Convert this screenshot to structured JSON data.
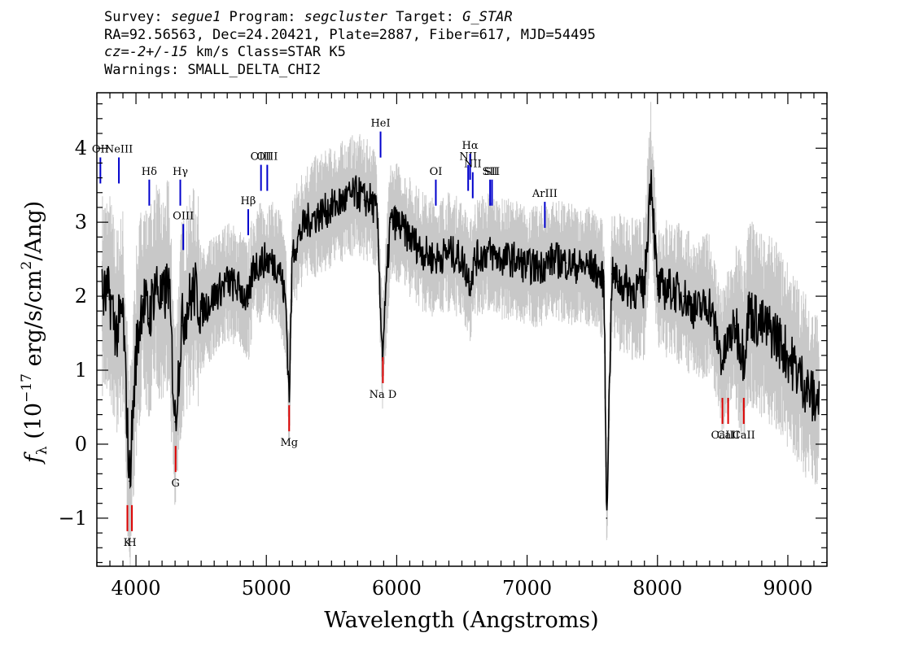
{
  "header": {
    "line1": {
      "survey_label": "Survey: ",
      "survey": "segue1",
      "program_label": " Program: ",
      "program": "segcluster",
      "target_label": " Target: ",
      "target": "G_STAR"
    },
    "line2": "RA=92.56563, Dec=24.20421, Plate=2887, Fiber=617, MJD=54495",
    "line3": {
      "cz": "cz=-2+/-15",
      "rest": " km/s Class=STAR K5"
    },
    "line4": "Warnings: SMALL_DELTA_CHI2"
  },
  "chart_data": {
    "type": "line",
    "xlabel": "Wavelength (Angstroms)",
    "ylabel": "f_λ (10^-17 erg/s/cm^2/Ang)",
    "xlim": [
      3700,
      9300
    ],
    "ylim": [
      -1.65,
      4.75
    ],
    "xticks": [
      4000,
      5000,
      6000,
      7000,
      8000,
      9000
    ],
    "yticks": [
      -1,
      0,
      1,
      2,
      3,
      4
    ],
    "colors": {
      "flux": "#000000",
      "error": "#c8c8c8",
      "emission": "#0000cc",
      "absorption": "#dd0000"
    },
    "series": [
      {
        "role": "flux",
        "x": [
          3800,
          3850,
          3900,
          3950,
          4000,
          4050,
          4100,
          4150,
          4200,
          4250,
          4300,
          4350,
          4400,
          4450,
          4500,
          4600,
          4700,
          4800,
          4862,
          4900,
          5000,
          5100,
          5150,
          5175,
          5200,
          5300,
          5400,
          5500,
          5600,
          5700,
          5750,
          5800,
          5850,
          5890,
          5950,
          6000,
          6100,
          6200,
          6300,
          6400,
          6500,
          6563,
          6600,
          6700,
          6800,
          6900,
          7000,
          7100,
          7200,
          7300,
          7400,
          7500,
          7590,
          7610,
          7650,
          7700,
          7800,
          7900,
          7950,
          8000,
          8100,
          8200,
          8300,
          8400,
          8450,
          8498,
          8542,
          8600,
          8662,
          8700,
          8800,
          8900,
          9000,
          9100,
          9200
        ],
        "y": [
          2.0,
          1.5,
          1.8,
          -0.5,
          1.2,
          2.0,
          1.7,
          2.2,
          1.9,
          2.2,
          0.3,
          1.6,
          1.9,
          2.1,
          1.8,
          2.0,
          2.2,
          2.1,
          1.9,
          2.4,
          2.5,
          2.4,
          1.9,
          0.6,
          2.6,
          3.0,
          3.1,
          3.2,
          3.3,
          3.4,
          3.3,
          3.3,
          3.1,
          1.2,
          3.0,
          3.0,
          2.8,
          2.6,
          2.5,
          2.6,
          2.5,
          2.2,
          2.5,
          2.6,
          2.5,
          2.5,
          2.4,
          2.4,
          2.5,
          2.45,
          2.4,
          2.4,
          2.2,
          -1.0,
          2.3,
          2.2,
          2.1,
          2.1,
          3.7,
          2.1,
          2.1,
          2.0,
          1.8,
          1.9,
          1.5,
          1.1,
          1.4,
          1.6,
          1.2,
          1.8,
          1.6,
          1.5,
          1.2,
          0.9,
          0.6
        ]
      }
    ],
    "emission_lines": [
      {
        "label": "OII",
        "wavelength": 3727,
        "flux": 3.7
      },
      {
        "label": "NeIII",
        "wavelength": 3869,
        "flux": 3.7
      },
      {
        "label": "Hδ",
        "wavelength": 4102,
        "flux": 3.4
      },
      {
        "label": "Hγ",
        "wavelength": 4340,
        "flux": 3.4
      },
      {
        "label": "OIII",
        "wavelength": 4363,
        "flux": 2.8
      },
      {
        "label": "Hβ",
        "wavelength": 4861,
        "flux": 3.0
      },
      {
        "label": "OIII",
        "wavelength": 4959,
        "flux": 3.6
      },
      {
        "label": "OIII",
        "wavelength": 5007,
        "flux": 3.6
      },
      {
        "label": "HeI",
        "wavelength": 5876,
        "flux": 4.05
      },
      {
        "label": "OI",
        "wavelength": 6300,
        "flux": 3.4
      },
      {
        "label": "NII",
        "wavelength": 6548,
        "flux": 3.6
      },
      {
        "label": "Hα",
        "wavelength": 6563,
        "flux": 3.75
      },
      {
        "label": "NII",
        "wavelength": 6583,
        "flux": 3.5
      },
      {
        "label": "SII",
        "wavelength": 6716,
        "flux": 3.4
      },
      {
        "label": "SII",
        "wavelength": 6731,
        "flux": 3.4
      },
      {
        "label": "ArIII",
        "wavelength": 7136,
        "flux": 3.1
      }
    ],
    "absorption_lines": [
      {
        "label": "K",
        "wavelength": 3934,
        "flux": -1.0
      },
      {
        "label": "H",
        "wavelength": 3969,
        "flux": -1.0
      },
      {
        "label": "G",
        "wavelength": 4304,
        "flux": -0.2
      },
      {
        "label": "Mg",
        "wavelength": 5175,
        "flux": 0.35
      },
      {
        "label": "Na D",
        "wavelength": 5894,
        "flux": 1.0
      },
      {
        "label": "CaII",
        "wavelength": 8498,
        "flux": 0.45
      },
      {
        "label": "CaII",
        "wavelength": 8542,
        "flux": 0.45
      },
      {
        "label": "CaII",
        "wavelength": 8662,
        "flux": 0.45
      }
    ]
  }
}
